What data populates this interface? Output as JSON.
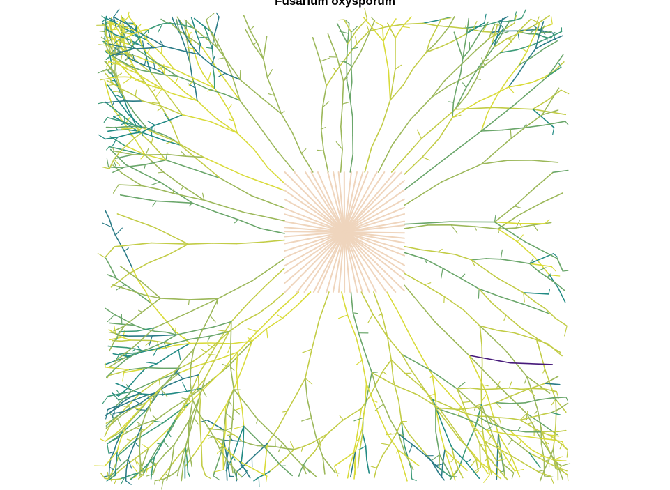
{
  "title": "Fusarium oxysporum",
  "colors": {
    "background": "#ffffff",
    "core_spokes": "#efd5bd",
    "branch_palette": [
      "#d9db3a",
      "#c2cc46",
      "#9cb85a",
      "#6aa66a",
      "#3b9a78",
      "#218a84",
      "#2a7b86",
      "#46197a"
    ]
  }
}
